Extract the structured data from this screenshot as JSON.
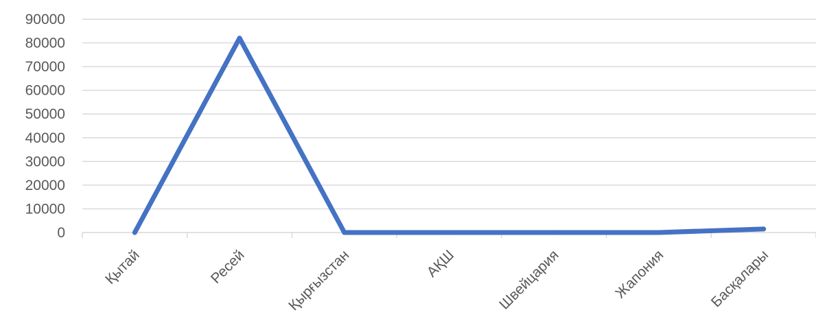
{
  "chart_data": {
    "type": "line",
    "title": "",
    "xlabel": "",
    "ylabel": "",
    "categories": [
      "Қытай",
      "Ресей",
      "Қырғызстан",
      "АҚШ",
      "Швейцария",
      "Жапония",
      "Басқалары"
    ],
    "series": [
      {
        "values": [
          0,
          82000,
          0,
          0,
          0,
          0,
          1500
        ],
        "color": "#4472C4"
      }
    ],
    "ylim": [
      0,
      90000
    ],
    "yticks": [
      0,
      10000,
      20000,
      30000,
      40000,
      50000,
      60000,
      70000,
      80000,
      90000
    ],
    "ytick_labels": [
      "0",
      "10000",
      "20000",
      "30000",
      "40000",
      "50000",
      "60000",
      "70000",
      "80000",
      "90000"
    ],
    "grid": true,
    "gridline_color": "#d9d9d9",
    "legend": "none"
  }
}
